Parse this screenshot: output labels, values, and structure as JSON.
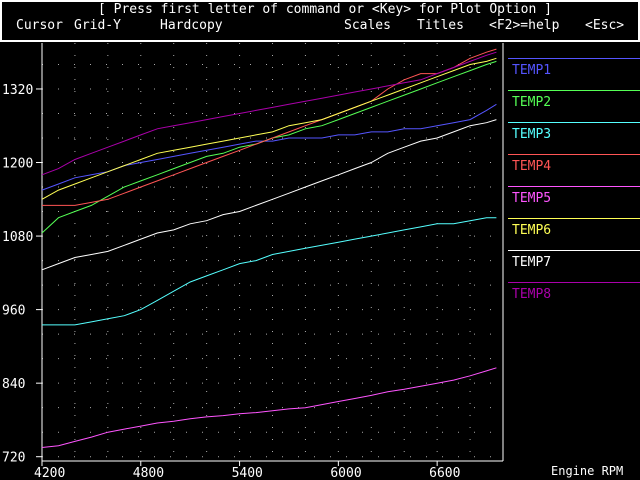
{
  "menu": {
    "prompt": "[ Press first letter of command or <Key> for Plot Option ]",
    "items": [
      "Cursor",
      "Grid-Y",
      "Hardcopy",
      "Scales",
      "Titles",
      "<F2>=help",
      "<Esc>"
    ]
  },
  "x_axis_label": "Engine RPM",
  "chart_data": {
    "type": "line",
    "xlabel": "Engine RPM",
    "ylabel": "",
    "xlim": [
      4200,
      7000
    ],
    "ylim": [
      713,
      1395
    ],
    "xticks": [
      4200,
      4800,
      5400,
      6000,
      6600
    ],
    "yticks": [
      720,
      840,
      960,
      1080,
      1200,
      1320
    ],
    "grid": true,
    "x": [
      4200,
      4300,
      4400,
      4500,
      4600,
      4700,
      4800,
      4900,
      5000,
      5100,
      5200,
      5300,
      5400,
      5500,
      5600,
      5700,
      5800,
      5900,
      6000,
      6100,
      6200,
      6300,
      6400,
      6500,
      6600,
      6700,
      6800,
      6900,
      6960
    ],
    "series": [
      {
        "name": "TEMP1",
        "color": "#5555ff",
        "values": [
          1155,
          1165,
          1175,
          1180,
          1185,
          1195,
          1200,
          1205,
          1210,
          1215,
          1220,
          1225,
          1230,
          1235,
          1235,
          1240,
          1240,
          1240,
          1245,
          1245,
          1250,
          1250,
          1255,
          1255,
          1260,
          1265,
          1270,
          1285,
          1295
        ]
      },
      {
        "name": "TEMP2",
        "color": "#55ff55",
        "values": [
          1085,
          1110,
          1120,
          1130,
          1145,
          1160,
          1170,
          1180,
          1190,
          1200,
          1210,
          1215,
          1225,
          1230,
          1240,
          1245,
          1255,
          1260,
          1270,
          1280,
          1290,
          1300,
          1310,
          1320,
          1330,
          1340,
          1350,
          1360,
          1365
        ]
      },
      {
        "name": "TEMP3",
        "color": "#55ffff",
        "values": [
          935,
          935,
          935,
          940,
          945,
          950,
          960,
          975,
          990,
          1005,
          1015,
          1025,
          1035,
          1040,
          1050,
          1055,
          1060,
          1065,
          1070,
          1075,
          1080,
          1085,
          1090,
          1095,
          1100,
          1100,
          1105,
          1110,
          1110
        ]
      },
      {
        "name": "TEMP4",
        "color": "#ff5555",
        "values": [
          1130,
          1130,
          1130,
          1135,
          1140,
          1150,
          1160,
          1170,
          1180,
          1190,
          1200,
          1210,
          1220,
          1230,
          1240,
          1250,
          1260,
          1270,
          1280,
          1290,
          1300,
          1320,
          1335,
          1345,
          1345,
          1355,
          1370,
          1380,
          1385
        ]
      },
      {
        "name": "TEMP5",
        "color": "#ff55ff",
        "values": [
          735,
          738,
          745,
          752,
          760,
          765,
          770,
          775,
          778,
          782,
          785,
          787,
          790,
          792,
          795,
          798,
          800,
          805,
          810,
          815,
          820,
          826,
          830,
          835,
          840,
          845,
          852,
          860,
          865
        ]
      },
      {
        "name": "TEMP6",
        "color": "#ffff55",
        "values": [
          1140,
          1155,
          1165,
          1175,
          1185,
          1195,
          1205,
          1215,
          1220,
          1225,
          1230,
          1235,
          1240,
          1245,
          1250,
          1260,
          1265,
          1270,
          1280,
          1290,
          1300,
          1310,
          1320,
          1330,
          1340,
          1350,
          1360,
          1365,
          1370
        ]
      },
      {
        "name": "TEMP7",
        "color": "#ffffff",
        "values": [
          1025,
          1035,
          1045,
          1050,
          1055,
          1065,
          1075,
          1085,
          1090,
          1100,
          1105,
          1115,
          1120,
          1130,
          1140,
          1150,
          1160,
          1170,
          1180,
          1190,
          1200,
          1215,
          1225,
          1235,
          1240,
          1250,
          1260,
          1265,
          1270
        ]
      },
      {
        "name": "TEMP8",
        "color": "#aa00aa",
        "values": [
          1180,
          1190,
          1205,
          1215,
          1225,
          1235,
          1245,
          1255,
          1260,
          1265,
          1270,
          1275,
          1280,
          1285,
          1290,
          1295,
          1300,
          1305,
          1310,
          1315,
          1320,
          1325,
          1330,
          1335,
          1345,
          1355,
          1365,
          1375,
          1380
        ]
      }
    ]
  }
}
